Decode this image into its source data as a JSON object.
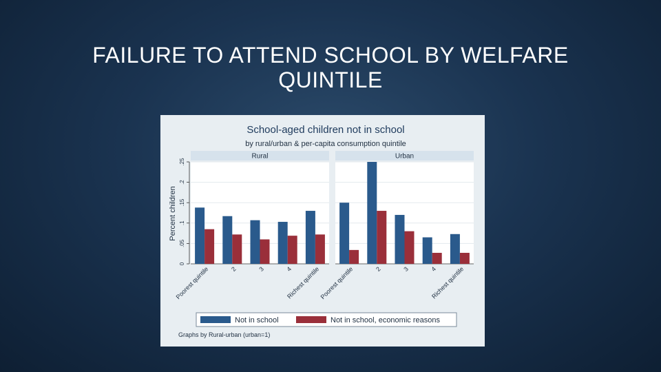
{
  "slide": {
    "title": "FAILURE TO ATTEND SCHOOL BY WELFARE QUINTILE"
  },
  "colors": {
    "series_not_in_school": "#2a5a8c",
    "series_economic": "#9a2f3a",
    "panel_header_bg": "#d6e2ec",
    "plot_bg": "#ffffff",
    "figure_bg": "#e8eef2"
  },
  "chart_data": {
    "type": "bar",
    "title": "School-aged children not in school",
    "subtitle": "by rural/urban & per-capita consumption quintile",
    "ylabel": "Percent children",
    "ylim": [
      0,
      0.25
    ],
    "yticks": [
      0,
      0.05,
      0.1,
      0.15,
      0.2,
      0.25
    ],
    "ytick_labels": [
      "0",
      ".05",
      ".1",
      ".15",
      ".2",
      ".25"
    ],
    "categories": [
      "Poorest quintile",
      "2",
      "3",
      "4",
      "Richest quintile"
    ],
    "panels": [
      {
        "name": "Rural",
        "series": [
          {
            "name": "Not in school",
            "values": [
              0.138,
              0.117,
              0.107,
              0.103,
              0.13
            ]
          },
          {
            "name": "Not in school, economic reasons",
            "values": [
              0.085,
              0.072,
              0.06,
              0.069,
              0.072
            ]
          }
        ]
      },
      {
        "name": "Urban",
        "series": [
          {
            "name": "Not in school",
            "values": [
              0.15,
              0.25,
              0.12,
              0.065,
              0.073
            ]
          },
          {
            "name": "Not in school, economic reasons",
            "values": [
              0.034,
              0.13,
              0.08,
              0.027,
              0.027
            ]
          }
        ]
      }
    ],
    "legend": {
      "position": "bottom",
      "entries": [
        "Not in school",
        "Not in school, economic reasons"
      ]
    },
    "note": "Graphs by Rural-urban (urban=1)",
    "grid": true
  }
}
